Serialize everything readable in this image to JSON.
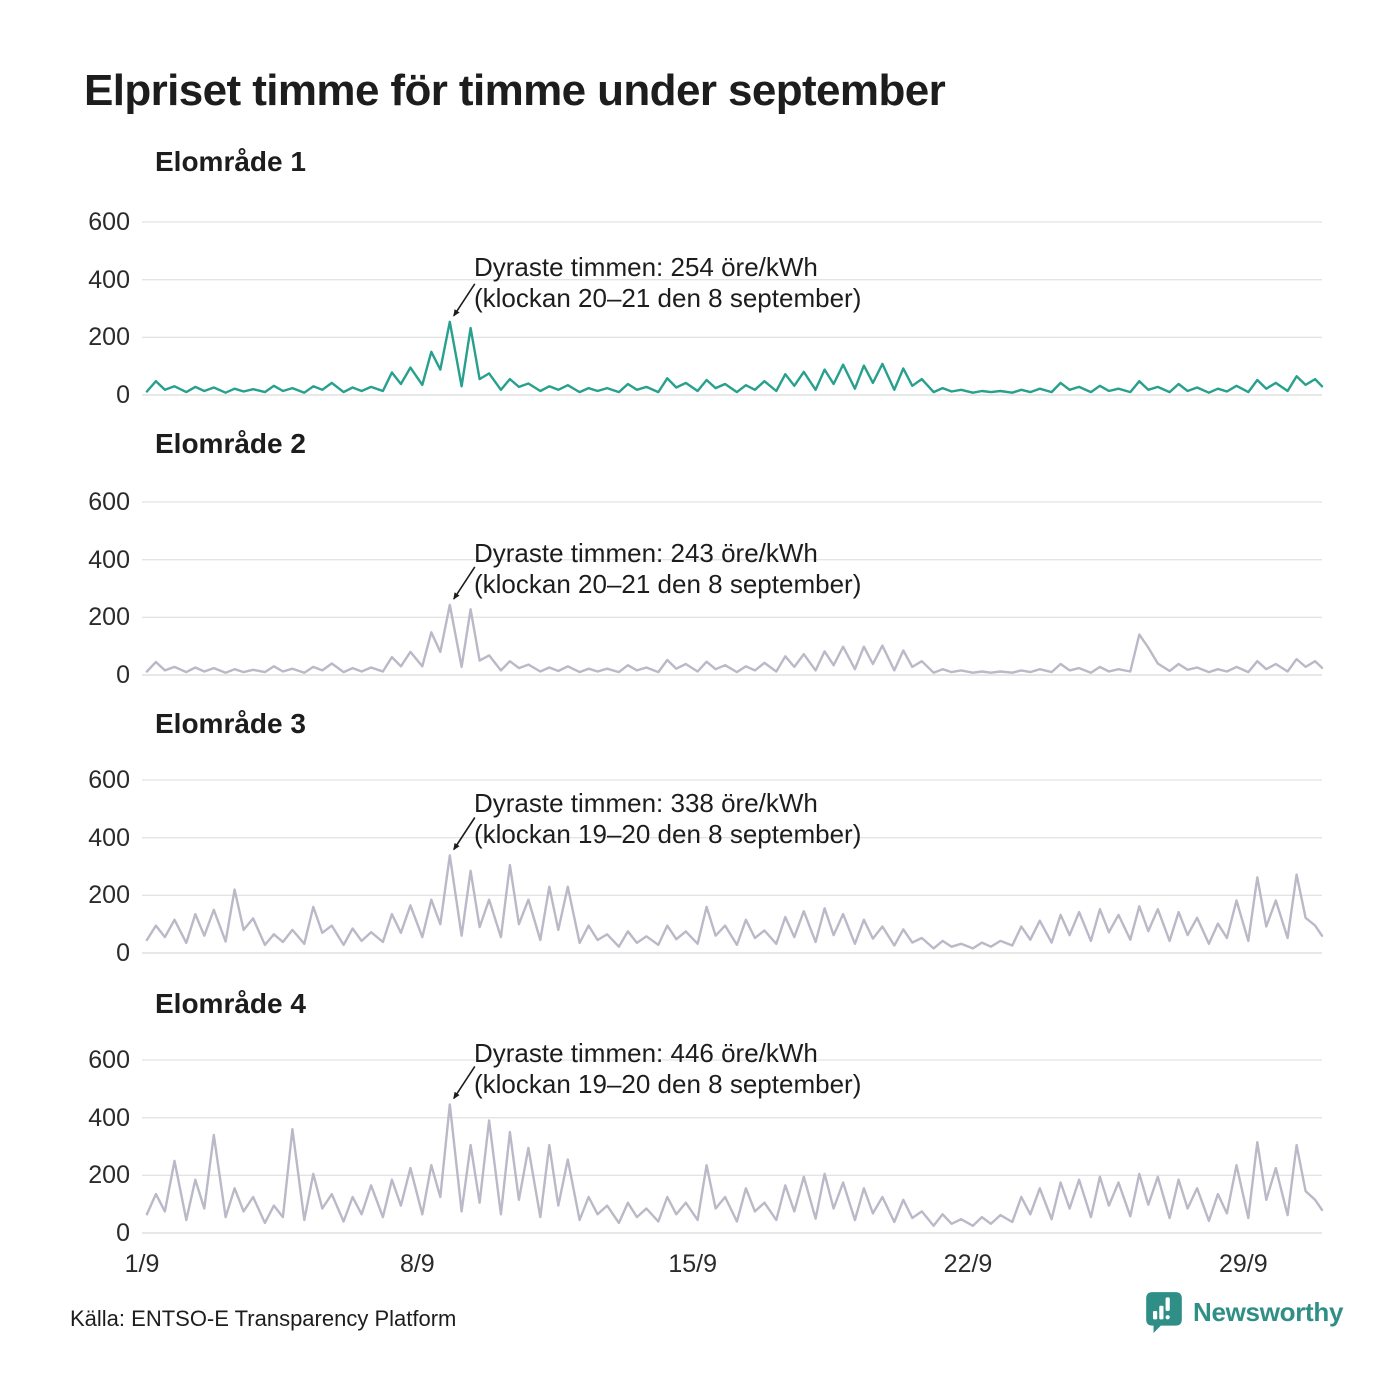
{
  "page": {
    "title": "Elpriset timme för timme under september",
    "source": "Källa: ENTSO-E Transparency Platform",
    "brand": "Newsworthy"
  },
  "colors": {
    "teal_line": "#27a08d",
    "gray_line": "#b9b9c8",
    "grid": "#e4e4e4",
    "grid_zero": "#d9d9d9",
    "annotation_arrow": "#1d1d1d",
    "brand_teal": "#2f8f87"
  },
  "chart_data": {
    "type": "line",
    "values_unit": "öre/kWh",
    "ylim": [
      0,
      600
    ],
    "y_ticks": [
      0,
      200,
      400,
      600
    ],
    "x_ticks": [
      {
        "label": "1/9",
        "day": 0
      },
      {
        "label": "8/9",
        "day": 7
      },
      {
        "label": "15/9",
        "day": 14
      },
      {
        "label": "22/9",
        "day": 21
      },
      {
        "label": "29/9",
        "day": 28
      }
    ],
    "x_range_days": [
      0,
      30
    ],
    "sample_hours": [
      3,
      8.5,
      14,
      19.8
    ],
    "panels": [
      {
        "title": "Elområde 1",
        "color": "#27a08d",
        "annotation_line1": "Dyraste timmen: 254 öre/kWh",
        "annotation_line2": "(klockan 20–21 den 8 september)",
        "peak": {
          "value": 254,
          "day": 8,
          "hours": "20–21"
        },
        "daily": [
          [
            12,
            48,
            18,
            30
          ],
          [
            10,
            28,
            14,
            26
          ],
          [
            8,
            22,
            12,
            20
          ],
          [
            10,
            32,
            14,
            24
          ],
          [
            8,
            30,
            18,
            42
          ],
          [
            10,
            26,
            14,
            28
          ],
          [
            14,
            78,
            38,
            95
          ],
          [
            35,
            150,
            88,
            254
          ],
          [
            30,
            232,
            55,
            75
          ],
          [
            18,
            55,
            28,
            40
          ],
          [
            14,
            30,
            18,
            34
          ],
          [
            10,
            24,
            14,
            24
          ],
          [
            10,
            38,
            18,
            28
          ],
          [
            10,
            58,
            26,
            42
          ],
          [
            14,
            52,
            24,
            38
          ],
          [
            10,
            34,
            18,
            48
          ],
          [
            14,
            72,
            32,
            80
          ],
          [
            18,
            88,
            38,
            105
          ],
          [
            22,
            102,
            42,
            108
          ],
          [
            18,
            92,
            32,
            55
          ],
          [
            10,
            24,
            12,
            18
          ],
          [
            8,
            14,
            10,
            14
          ],
          [
            8,
            18,
            10,
            22
          ],
          [
            10,
            42,
            18,
            28
          ],
          [
            10,
            32,
            14,
            22
          ],
          [
            10,
            48,
            18,
            28
          ],
          [
            10,
            38,
            14,
            26
          ],
          [
            8,
            22,
            12,
            32
          ],
          [
            10,
            52,
            22,
            42
          ],
          [
            14,
            65,
            35,
            55
          ]
        ],
        "end_value": 30
      },
      {
        "title": "Elområde 2",
        "color": "#b9b9c8",
        "annotation_line1": "Dyraste timmen: 243 öre/kWh",
        "annotation_line2": "(klockan 20–21 den 8 september)",
        "peak": {
          "value": 243,
          "day": 8,
          "hours": "20–21"
        },
        "daily": [
          [
            12,
            45,
            16,
            28
          ],
          [
            10,
            26,
            12,
            24
          ],
          [
            8,
            20,
            10,
            18
          ],
          [
            10,
            30,
            12,
            22
          ],
          [
            8,
            28,
            16,
            40
          ],
          [
            10,
            24,
            12,
            26
          ],
          [
            12,
            62,
            30,
            80
          ],
          [
            30,
            148,
            80,
            243
          ],
          [
            28,
            228,
            50,
            68
          ],
          [
            16,
            48,
            24,
            36
          ],
          [
            12,
            26,
            14,
            30
          ],
          [
            10,
            22,
            12,
            22
          ],
          [
            10,
            34,
            16,
            26
          ],
          [
            10,
            52,
            22,
            38
          ],
          [
            12,
            46,
            20,
            34
          ],
          [
            10,
            30,
            16,
            42
          ],
          [
            12,
            65,
            28,
            72
          ],
          [
            16,
            82,
            34,
            98
          ],
          [
            20,
            98,
            38,
            102
          ],
          [
            16,
            85,
            28,
            48
          ],
          [
            8,
            20,
            10,
            16
          ],
          [
            8,
            12,
            8,
            12
          ],
          [
            8,
            16,
            10,
            20
          ],
          [
            10,
            38,
            16,
            24
          ],
          [
            8,
            28,
            12,
            20
          ],
          [
            12,
            140,
            95,
            40
          ],
          [
            14,
            38,
            18,
            26
          ],
          [
            10,
            20,
            12,
            28
          ],
          [
            10,
            48,
            20,
            38
          ],
          [
            12,
            55,
            28,
            48
          ]
        ],
        "end_value": 25
      },
      {
        "title": "Elområde 3",
        "color": "#b9b9c8",
        "annotation_line1": "Dyraste timmen: 338 öre/kWh",
        "annotation_line2": "(klockan 19–20 den 8 september)",
        "peak": {
          "value": 338,
          "day": 8,
          "hours": "19–20"
        },
        "daily": [
          [
            45,
            95,
            55,
            115
          ],
          [
            35,
            135,
            60,
            150
          ],
          [
            40,
            220,
            80,
            120
          ],
          [
            28,
            65,
            38,
            80
          ],
          [
            32,
            160,
            70,
            95
          ],
          [
            28,
            85,
            42,
            72
          ],
          [
            38,
            135,
            70,
            165
          ],
          [
            55,
            185,
            100,
            338
          ],
          [
            60,
            285,
            90,
            185
          ],
          [
            55,
            305,
            100,
            185
          ],
          [
            45,
            230,
            80,
            230
          ],
          [
            35,
            95,
            45,
            65
          ],
          [
            22,
            75,
            35,
            58
          ],
          [
            28,
            95,
            48,
            75
          ],
          [
            32,
            160,
            60,
            95
          ],
          [
            28,
            115,
            52,
            78
          ],
          [
            32,
            125,
            55,
            145
          ],
          [
            38,
            155,
            62,
            135
          ],
          [
            32,
            115,
            50,
            92
          ],
          [
            26,
            82,
            36,
            52
          ],
          [
            16,
            42,
            22,
            32
          ],
          [
            16,
            36,
            22,
            42
          ],
          [
            26,
            92,
            46,
            112
          ],
          [
            36,
            132,
            62,
            142
          ],
          [
            42,
            152,
            72,
            132
          ],
          [
            46,
            162,
            76,
            152
          ],
          [
            42,
            142,
            62,
            122
          ],
          [
            32,
            102,
            52,
            182
          ],
          [
            42,
            262,
            92,
            182
          ],
          [
            52,
            272,
            122,
            95
          ]
        ],
        "end_value": 60
      },
      {
        "title": "Elområde 4",
        "color": "#b9b9c8",
        "annotation_line1": "Dyraste timmen: 446 öre/kWh",
        "annotation_line2": "(klockan 19–20 den 8 september)",
        "peak": {
          "value": 446,
          "day": 8,
          "hours": "19–20"
        },
        "daily": [
          [
            65,
            135,
            75,
            250
          ],
          [
            45,
            185,
            85,
            340
          ],
          [
            55,
            155,
            75,
            125
          ],
          [
            35,
            95,
            55,
            360
          ],
          [
            45,
            205,
            85,
            135
          ],
          [
            40,
            125,
            65,
            165
          ],
          [
            55,
            185,
            95,
            225
          ],
          [
            65,
            235,
            125,
            446
          ],
          [
            75,
            305,
            105,
            390
          ],
          [
            65,
            350,
            115,
            295
          ],
          [
            55,
            305,
            95,
            255
          ],
          [
            45,
            125,
            65,
            95
          ],
          [
            35,
            105,
            55,
            85
          ],
          [
            40,
            125,
            65,
            105
          ],
          [
            45,
            235,
            85,
            125
          ],
          [
            40,
            155,
            75,
            105
          ],
          [
            45,
            165,
            75,
            195
          ],
          [
            50,
            205,
            85,
            175
          ],
          [
            45,
            155,
            68,
            125
          ],
          [
            38,
            115,
            52,
            75
          ],
          [
            25,
            65,
            32,
            48
          ],
          [
            25,
            55,
            32,
            62
          ],
          [
            38,
            125,
            65,
            155
          ],
          [
            48,
            175,
            85,
            185
          ],
          [
            55,
            195,
            95,
            175
          ],
          [
            58,
            205,
            98,
            195
          ],
          [
            52,
            185,
            85,
            155
          ],
          [
            42,
            135,
            68,
            235
          ],
          [
            52,
            315,
            115,
            225
          ],
          [
            62,
            305,
            145,
            115
          ]
        ],
        "end_value": 80
      }
    ]
  }
}
